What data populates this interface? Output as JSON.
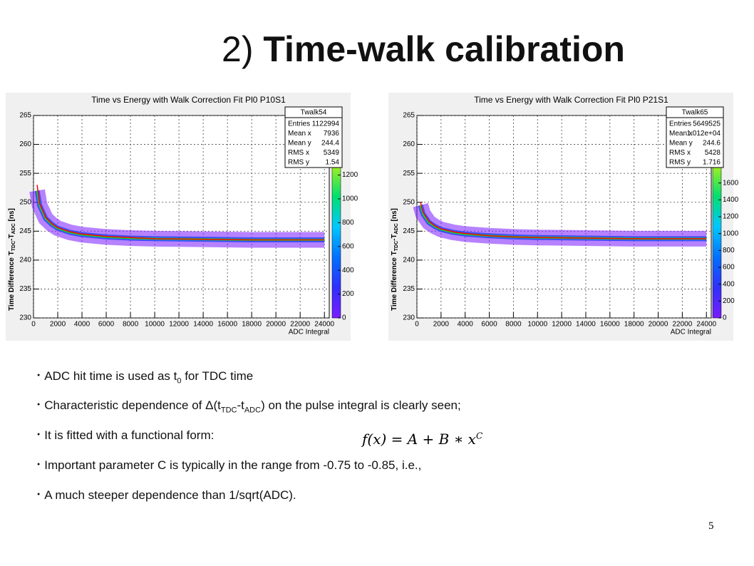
{
  "title": {
    "prefix": "2)",
    "main": "Time-walk calibration"
  },
  "chart_data": [
    {
      "type": "histogram2d",
      "title": "Time vs Energy with Walk Correction Fit Pl0 P10S1",
      "xlabel": "ADC Integral",
      "ylabel": [
        "Time Difference T",
        "TDC",
        "-T",
        "ADC",
        " [ns]"
      ],
      "xlim": [
        0,
        24400
      ],
      "xticks": [
        0,
        2000,
        4000,
        6000,
        8000,
        10000,
        12000,
        14000,
        16000,
        18000,
        20000,
        22000,
        24000
      ],
      "ylim": [
        230,
        265
      ],
      "yticks": [
        230,
        235,
        240,
        245,
        250,
        255,
        260,
        265
      ],
      "zlim": [
        0,
        1700
      ],
      "zticks": [
        0,
        200,
        400,
        600,
        800,
        1000,
        1200
      ],
      "grid": true,
      "x": [
        300,
        500,
        1000,
        1500,
        2000,
        3000,
        4000,
        6000,
        8000,
        10000,
        14000,
        18000,
        24000
      ],
      "series": [
        {
          "color": "#10d040",
          "values": [
            252,
            249.5,
            247.2,
            246.2,
            245.5,
            244.8,
            244.4,
            244,
            243.8,
            243.7,
            243.6,
            243.5,
            243.5
          ]
        },
        {
          "color": "#ff0000",
          "values": [
            253,
            249.8,
            247.4,
            246.3,
            245.6,
            244.9,
            244.5,
            244.1,
            243.9,
            243.7,
            243.6,
            243.5,
            243.5
          ]
        }
      ],
      "stats": {
        "title": "Twalk54",
        "rows": [
          [
            "Entries",
            1122994
          ],
          [
            "Mean x",
            7936
          ],
          [
            "Mean y",
            244.4
          ],
          [
            "RMS x",
            5349
          ],
          [
            "RMS y",
            1.54
          ]
        ]
      }
    },
    {
      "type": "histogram2d",
      "title": "Time vs Energy with Walk Correction Fit Pl0 P21S1",
      "xlabel": "ADC Integral",
      "ylabel": [
        "Time Difference T",
        "TDC",
        "-T",
        "ADC",
        " [ns]"
      ],
      "xlim": [
        0,
        24400
      ],
      "xticks": [
        0,
        2000,
        4000,
        6000,
        8000,
        10000,
        12000,
        14000,
        16000,
        18000,
        20000,
        22000,
        24000
      ],
      "ylim": [
        230,
        265
      ],
      "yticks": [
        230,
        235,
        240,
        245,
        250,
        255,
        260,
        265
      ],
      "zlim": [
        0,
        2400
      ],
      "zticks": [
        0,
        200,
        400,
        600,
        800,
        1000,
        1200,
        1400,
        1600
      ],
      "grid": true,
      "x": [
        300,
        500,
        1000,
        1500,
        2000,
        3000,
        4000,
        6000,
        8000,
        10000,
        14000,
        18000,
        24000
      ],
      "series": [
        {
          "color": "#10d040",
          "values": [
            249.5,
            248,
            246.5,
            245.8,
            245.3,
            244.8,
            244.5,
            244.2,
            244,
            243.9,
            243.8,
            243.7,
            243.7
          ]
        },
        {
          "color": "#ff0000",
          "values": [
            250,
            248.3,
            246.7,
            245.9,
            245.4,
            244.9,
            244.6,
            244.2,
            244,
            243.9,
            243.8,
            243.7,
            243.7
          ]
        }
      ],
      "stats": {
        "title": "Twalk65",
        "rows": [
          [
            "Entries",
            5649525
          ],
          [
            "Mean x",
            "1.012e+04"
          ],
          [
            "Mean y",
            244.6
          ],
          [
            "RMS x",
            5428
          ],
          [
            "RMS y",
            1.716
          ]
        ]
      }
    }
  ],
  "bullets": [
    [
      "ADC hit time is used as t",
      "0",
      " for TDC time"
    ],
    [
      "Characteristic dependence of Δ(t",
      "TDC",
      "-t",
      "ADC",
      ") on the pulse integral is clearly seen;"
    ],
    [
      "It is fitted with a functional form:"
    ],
    [
      "Important parameter C is typically in the range from -0.75 to -0.85, i.e.,"
    ],
    [
      "A much steeper dependence than 1/sqrt(ADC)."
    ]
  ],
  "formula": [
    "f(x) = A + B ∗ x",
    "C"
  ],
  "page_number": "5"
}
